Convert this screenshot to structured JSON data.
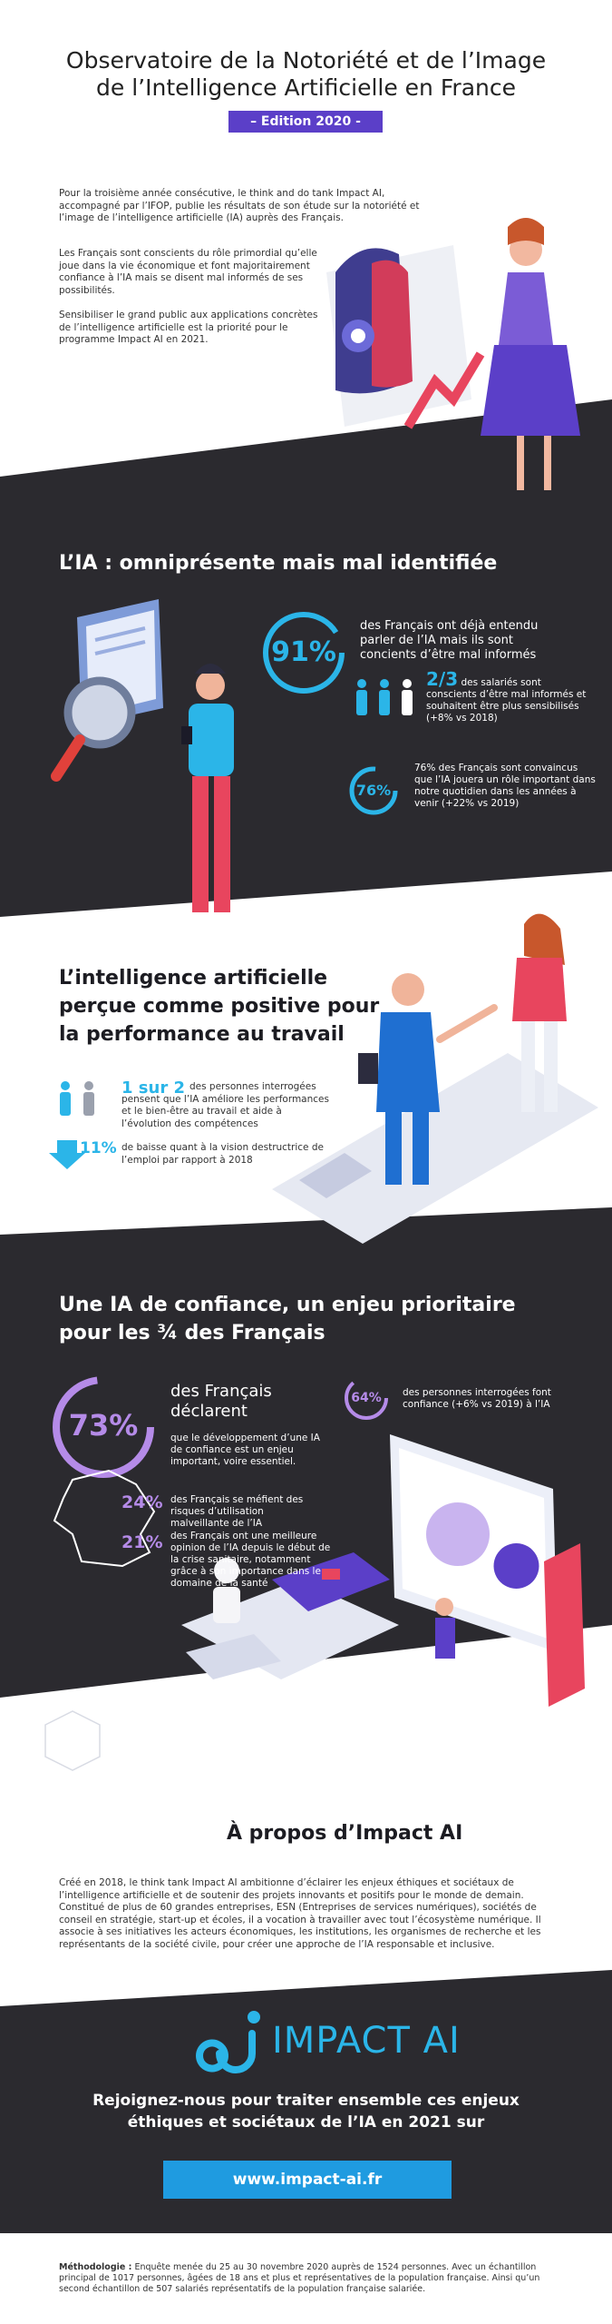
{
  "header": {
    "title_line1": "Observatoire de la Notoriété et de l’Image",
    "title_line2": "de l’Intelligence Artificielle en France",
    "edition": "– Edition 2020 -"
  },
  "intro": {
    "paragraphs": [
      "Pour la troisième année consécutive, le think and do tank Impact AI, accompagné par l’IFOP, publie les résultats de son étude sur la notoriété et l’image de l’intelligence artificielle (IA) auprès des Français.",
      "Les Français sont conscients du rôle primordial qu’elle joue dans la vie économique et font majoritairement confiance à l’IA mais se disent mal informés de ses possibilités.",
      "Sensibiliser le grand public aux applications concrètes de l’intelligence artificielle est la priorité pour le programme Impact AI en 2021."
    ]
  },
  "section1": {
    "heading": "L’IA : omniprésente mais mal identifiée",
    "stats": [
      {
        "value": "91%",
        "text": "des Français ont déjà entendu parler de l’IA mais ils sont concients d’être mal informés"
      },
      {
        "value": "2/3",
        "text": "des salariés sont conscients d’être mal informés et souhaitent être plus sensibilisés (+8% vs 2018)"
      },
      {
        "value": "76%",
        "text": "76% des Français sont convaincus que l’IA jouera un rôle important dans notre quotidien dans les années à venir (+22% vs 2019)"
      }
    ]
  },
  "section2": {
    "heading_lines": [
      "L’intelligence artificielle",
      "perçue comme positive pour",
      "la performance au travail"
    ],
    "stats": [
      {
        "value": "1 sur 2",
        "text": "des personnes interrogées pensent que l’IA améliore les performances et le bien-être au travail et aide à l’évolution des compétences"
      },
      {
        "value": "11%",
        "text": "de baisse quant à la vision destructrice de l’emploi par rapport à 2018"
      }
    ]
  },
  "section3": {
    "heading_lines": [
      "Une IA de confiance, un enjeu prioritaire",
      "pour les ¾ des Français"
    ],
    "main": {
      "value": "73%",
      "title": "des Français déclarent",
      "text": "que le développement d’une IA de confiance est un enjeu important, voire essentiel."
    },
    "stats": [
      {
        "value": "64%",
        "text": "des personnes interrogées font confiance (+6% vs 2019) à l’IA"
      },
      {
        "value": "24%",
        "text": "des Français se méfient des risques d’utilisation malveillante de l’IA"
      },
      {
        "value": "21%",
        "text": "des Français ont une meilleure opinion de l’IA depuis le début de la crise sanitaire, notamment grâce à son importance dans le domaine de la santé"
      }
    ]
  },
  "about": {
    "heading": "À propos d’Impact AI",
    "text": "Créé en 2018, le think tank Impact AI ambitionne d’éclairer les enjeux éthiques et sociétaux de l’intelligence artificielle et de soutenir des projets innovants et positifs pour le monde de demain. Constitué de plus de 60 grandes entreprises, ESN (Entreprises de services numériques), sociétés de conseil en stratégie, start-up et écoles, il a vocation à travailler avec tout l’écosystème numérique. Il associe à ses initiatives les acteurs économiques, les institutions, les organismes de recherche et les représentants de la société civile, pour créer une approche de l’IA responsable et inclusive."
  },
  "footer": {
    "logo": "IMPACT AI",
    "join": "Rejoignez-nous pour traiter ensemble ces enjeux éthiques et sociétaux de l’IA en 2021 sur",
    "url": "www.impact-ai.fr",
    "methodology_label": "Méthodologie :",
    "methodology_text": "Enquête menée du 25 au 30 novembre 2020 auprès de 1524 personnes. Avec un échantillon principal de 1017 personnes, âgées de 18 ans et plus et représentatives de la population française. Ainsi qu’un second échantillon de 507 salariés représentatifs de la population française salariée."
  }
}
